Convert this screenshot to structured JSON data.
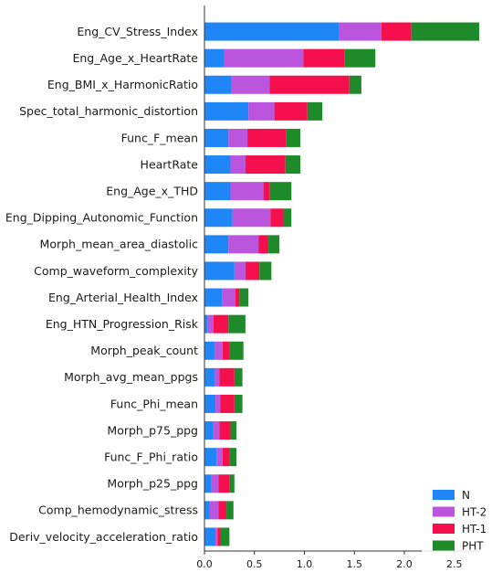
{
  "chart_data": {
    "type": "bar",
    "orientation": "horizontal",
    "stacked": true,
    "title": "",
    "xlabel": "",
    "ylabel": "",
    "xlim": [
      0,
      2.75
    ],
    "xticks": [
      "0.0",
      "0.5",
      "1.0",
      "1.5",
      "2.0",
      "2.5"
    ],
    "grid": false,
    "legend_position": "bottom-right",
    "categories": [
      "Eng_CV_Stress_Index",
      "Eng_Age_x_HeartRate",
      "Eng_BMI_x_HarmonicRatio",
      "Spec_total_harmonic_distortion",
      "Func_F_mean",
      "HeartRate",
      "Eng_Age_x_THD",
      "Eng_Dipping_Autonomic_Function",
      "Morph_mean_area_diastolic",
      "Comp_waveform_complexity",
      "Eng_Arterial_Health_Index",
      "Eng_HTN_Progression_Risk",
      "Morph_peak_count",
      "Morph_avg_mean_ppgs",
      "Func_Phi_mean",
      "Morph_p75_ppg",
      "Func_F_Phi_ratio",
      "Morph_p25_ppg",
      "Comp_hemodynamic_stress",
      "Deriv_velocity_acceleration_ratio"
    ],
    "series": [
      {
        "name": "N",
        "color": "#1f86f7",
        "values": [
          1.35,
          0.2,
          0.27,
          0.44,
          0.24,
          0.26,
          0.26,
          0.28,
          0.24,
          0.3,
          0.18,
          0.03,
          0.1,
          0.1,
          0.11,
          0.09,
          0.12,
          0.07,
          0.05,
          0.11
        ]
      },
      {
        "name": "HT-2",
        "color": "#bb55dd",
        "values": [
          0.42,
          0.79,
          0.38,
          0.26,
          0.19,
          0.15,
          0.33,
          0.38,
          0.3,
          0.11,
          0.13,
          0.06,
          0.08,
          0.05,
          0.05,
          0.06,
          0.06,
          0.07,
          0.09,
          0.02
        ]
      },
      {
        "name": "HT-1",
        "color": "#f5104d",
        "values": [
          0.3,
          0.41,
          0.8,
          0.33,
          0.39,
          0.4,
          0.06,
          0.13,
          0.1,
          0.14,
          0.04,
          0.15,
          0.07,
          0.15,
          0.14,
          0.11,
          0.07,
          0.11,
          0.08,
          0.03
        ]
      },
      {
        "name": "PHT",
        "color": "#1f8a2a",
        "values": [
          0.68,
          0.31,
          0.12,
          0.15,
          0.14,
          0.15,
          0.22,
          0.08,
          0.11,
          0.12,
          0.09,
          0.17,
          0.14,
          0.08,
          0.08,
          0.06,
          0.07,
          0.05,
          0.07,
          0.09
        ]
      }
    ]
  }
}
